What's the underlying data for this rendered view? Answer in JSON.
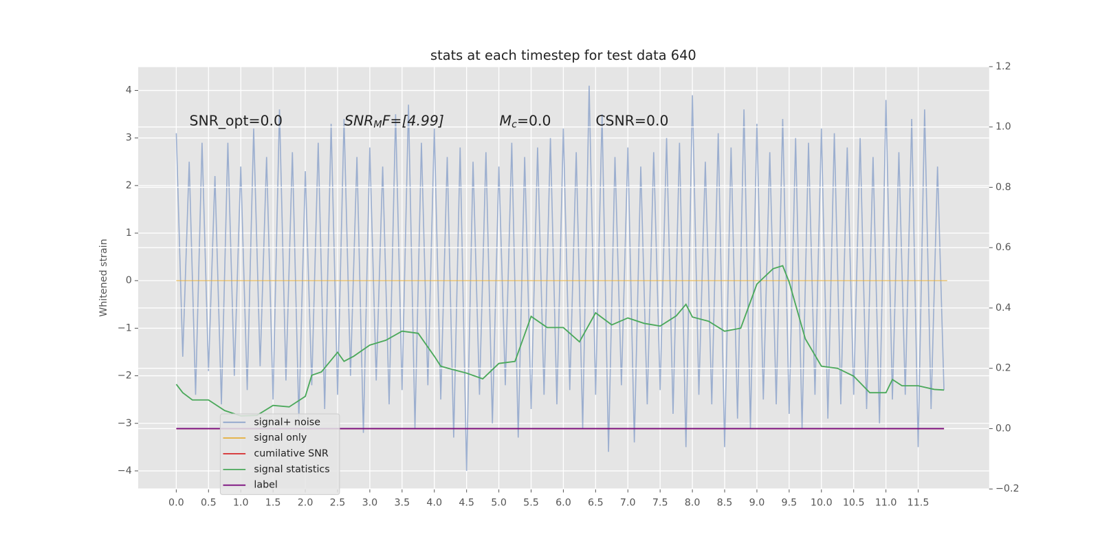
{
  "chart_data": {
    "type": "line",
    "title": "stats at each timestep for test data 640",
    "ylabel": "Whitened strain",
    "annotations": [
      {
        "main": "SNR_opt=0.0"
      },
      {
        "main": "SNR",
        "sub": "M",
        "rest": "F=[4.99]"
      },
      {
        "main": "M",
        "sub": "c",
        "rest": "=0.0"
      },
      {
        "main": "CSNR=0.0"
      }
    ],
    "xlim": [
      -0.59,
      12.6
    ],
    "xticks": [
      {
        "value": 0,
        "label": "0.0"
      },
      0.5,
      {
        "value": 1,
        "label": "1.0"
      },
      1.5,
      {
        "value": 2,
        "label": "2.0"
      },
      2.5,
      {
        "value": 3,
        "label": "3.0"
      },
      3.5,
      {
        "value": 4,
        "label": "4.0"
      },
      4.5,
      {
        "value": 5,
        "label": "5.0"
      },
      5.5,
      {
        "value": 6,
        "label": "6.0"
      },
      6.5,
      {
        "value": 7,
        "label": "7.0"
      },
      7.5,
      {
        "value": 8,
        "label": "8.0"
      },
      8.5,
      {
        "value": 9,
        "label": "9.0"
      },
      9.5,
      {
        "value": 10,
        "label": "10.0"
      },
      10.5,
      {
        "value": 11,
        "label": "11.0"
      },
      11.5
    ],
    "ylim": [
      -4.38,
      4.5
    ],
    "yticks": [
      {
        "value": -4,
        "label": "−4"
      },
      {
        "value": -3,
        "label": "−3"
      },
      {
        "value": -2,
        "label": "−2"
      },
      {
        "value": -1,
        "label": "−1"
      },
      0,
      1,
      2,
      3,
      4
    ],
    "y2lim": [
      -0.2,
      1.2
    ],
    "y2ticks": [
      {
        "value": -0.2,
        "label": "−0.2"
      },
      {
        "value": 0,
        "label": "0.0"
      },
      0.2,
      0.4,
      0.6,
      0.8,
      {
        "value": 1,
        "label": "1.0"
      },
      1.2
    ],
    "grid": true,
    "legend": "lower left",
    "series": [
      {
        "name": "signal+ noise",
        "color": "#8ea4cb",
        "x": [
          0,
          0.1,
          0.2,
          0.3,
          0.4,
          0.5,
          0.6,
          0.7,
          0.8,
          0.9,
          1,
          1.1,
          1.2,
          1.3,
          1.4,
          1.5,
          1.6,
          1.7,
          1.8,
          1.9,
          2,
          2.1,
          2.2,
          2.3,
          2.4,
          2.5,
          2.6,
          2.7,
          2.8,
          2.9,
          3,
          3.1,
          3.2,
          3.3,
          3.4,
          3.5,
          3.6,
          3.7,
          3.8,
          3.9,
          4,
          4.1,
          4.2,
          4.3,
          4.4,
          4.5,
          4.6,
          4.7,
          4.8,
          4.9,
          5,
          5.1,
          5.2,
          5.3,
          5.4,
          5.5,
          5.6,
          5.7,
          5.8,
          5.9,
          6,
          6.1,
          6.2,
          6.3,
          6.4,
          6.5,
          6.6,
          6.7,
          6.8,
          6.9,
          7,
          7.1,
          7.2,
          7.3,
          7.4,
          7.5,
          7.6,
          7.7,
          7.8,
          7.9,
          8,
          8.1,
          8.2,
          8.3,
          8.4,
          8.5,
          8.6,
          8.7,
          8.8,
          8.9,
          9,
          9.1,
          9.2,
          9.3,
          9.4,
          9.5,
          9.6,
          9.7,
          9.8,
          9.9,
          10,
          10.1,
          10.2,
          10.3,
          10.4,
          10.5,
          10.6,
          10.7,
          10.8,
          10.9,
          11,
          11.1,
          11.2,
          11.3,
          11.4,
          11.5,
          11.6,
          11.7,
          11.8,
          11.9
        ],
        "values": [
          3.1,
          -1.6,
          2.5,
          -2.4,
          2.9,
          -1.9,
          2.2,
          -2.6,
          2.9,
          -2.0,
          2.4,
          -2.3,
          3.2,
          -1.8,
          2.6,
          -2.5,
          3.6,
          -2.1,
          2.7,
          -2.9,
          2.3,
          -2.2,
          2.9,
          -2.7,
          3.3,
          -2.4,
          3.4,
          -2.0,
          2.6,
          -3.2,
          2.8,
          -2.1,
          2.4,
          -2.6,
          3.5,
          -2.3,
          3.7,
          -3.1,
          2.9,
          -2.2,
          3.2,
          -2.5,
          2.6,
          -3.3,
          2.8,
          -4.0,
          2.5,
          -2.4,
          2.7,
          -3.0,
          2.4,
          -2.2,
          2.9,
          -3.3,
          2.6,
          -2.7,
          2.8,
          -2.4,
          3.0,
          -2.6,
          3.2,
          -2.3,
          2.7,
          -3.1,
          4.1,
          -2.4,
          3.5,
          -3.6,
          2.6,
          -2.2,
          2.8,
          -3.4,
          2.4,
          -2.6,
          2.7,
          -2.3,
          3.0,
          -2.8,
          2.9,
          -3.5,
          3.9,
          -2.4,
          2.5,
          -2.6,
          3.1,
          -3.5,
          2.8,
          -2.9,
          3.6,
          -3.1,
          3.3,
          -2.5,
          2.7,
          -2.6,
          3.4,
          -2.8,
          3.0,
          -3.1,
          2.9,
          -2.4,
          3.2,
          -2.9,
          3.1,
          -2.6,
          2.8,
          -2.4,
          3.0,
          -2.7,
          2.6,
          -3.0,
          3.8,
          -2.5,
          2.7,
          -2.4,
          3.4,
          -3.5,
          3.6,
          -2.7,
          2.4,
          -2.3
        ]
      },
      {
        "name": "signal only",
        "color": "#e5ae38",
        "x": [
          0,
          11.95
        ],
        "values": [
          0,
          0
        ]
      },
      {
        "name": "cumilative SNR",
        "color": "#d62728",
        "axis": "y2",
        "x": [
          0,
          11.9
        ],
        "values": [
          0,
          0
        ]
      },
      {
        "name": "signal statistics",
        "color": "#4aa85a",
        "axis": "y2",
        "x": [
          0,
          0.1,
          0.25,
          0.5,
          0.75,
          1,
          1.25,
          1.5,
          1.75,
          2,
          2.1,
          2.25,
          2.5,
          2.6,
          2.75,
          3,
          3.25,
          3.5,
          3.75,
          4,
          4.1,
          4.25,
          4.5,
          4.75,
          5,
          5.25,
          5.5,
          5.75,
          6,
          6.25,
          6.5,
          6.75,
          7,
          7.25,
          7.5,
          7.75,
          7.9,
          8,
          8.25,
          8.5,
          8.75,
          9,
          9.25,
          9.4,
          9.5,
          9.75,
          10,
          10.25,
          10.5,
          10.75,
          11,
          11.1,
          11.25,
          11.5,
          11.75,
          11.9
        ],
        "values": [
          0.147,
          0.119,
          0.095,
          0.095,
          0.06,
          0.042,
          0.044,
          0.077,
          0.072,
          0.107,
          0.177,
          0.188,
          0.253,
          0.223,
          0.24,
          0.277,
          0.293,
          0.323,
          0.316,
          0.24,
          0.207,
          0.198,
          0.184,
          0.165,
          0.216,
          0.223,
          0.372,
          0.335,
          0.335,
          0.288,
          0.384,
          0.344,
          0.367,
          0.349,
          0.34,
          0.374,
          0.412,
          0.37,
          0.356,
          0.323,
          0.333,
          0.479,
          0.53,
          0.54,
          0.486,
          0.298,
          0.207,
          0.2,
          0.174,
          0.119,
          0.119,
          0.163,
          0.142,
          0.142,
          0.13,
          0.128
        ]
      },
      {
        "name": "label",
        "color": "#7b0e7e",
        "axis": "y2",
        "x": [
          0,
          11.9
        ],
        "values": [
          0,
          0
        ]
      }
    ]
  }
}
